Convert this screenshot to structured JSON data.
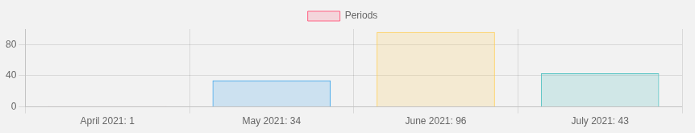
{
  "chart_data": {
    "type": "bar",
    "categories": [
      "April 2021: 1",
      "May 2021: 34",
      "June 2021: 96",
      "July 2021: 43"
    ],
    "series": [
      {
        "name": "Periods",
        "values": [
          1,
          34,
          96,
          43
        ]
      }
    ],
    "colors": [
      "#ff6384",
      "#36a2eb",
      "#ffce56",
      "#4bc0c0"
    ],
    "ylim": [
      0,
      100
    ],
    "yticks": [
      0,
      40,
      80
    ],
    "grid": true,
    "legend": "top"
  }
}
